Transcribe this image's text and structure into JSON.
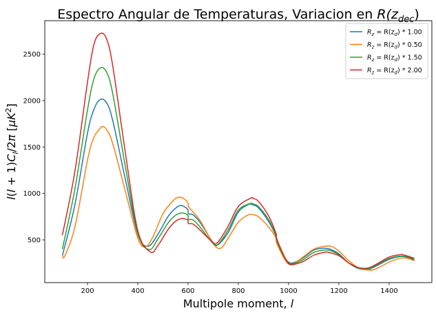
{
  "chart_data": {
    "type": "line",
    "title": "Espectro Angular de Temperaturas, Variacion en R(z_dec)",
    "title_parts": {
      "prefix": "Espectro Angular de Temperaturas, Variacion en ",
      "math": "R(z",
      "math_sub": "dec",
      "math_suffix": ")"
    },
    "xlabel": "Multipole moment, l",
    "xlabel_parts": {
      "prefix": "Multipole moment, ",
      "math": "l"
    },
    "ylabel": "l(l+1)C_l/2π [μK²]",
    "xlim": [
      30,
      1570
    ],
    "ylim": [
      40,
      2860
    ],
    "xticks": [
      200,
      400,
      600,
      800,
      1000,
      1200,
      1400
    ],
    "yticks": [
      500,
      1000,
      1500,
      2000,
      2500
    ],
    "grid": false,
    "legend_position": "top-right",
    "colors": {
      "blue": "#1f77b4",
      "orange": "#ff7f0e",
      "green": "#2ca02c",
      "red": "#d62728"
    },
    "series": [
      {
        "name": "R_z = R(z_d) * 1.00",
        "legend": {
          "lhs": "R",
          "lhs_sub": "z",
          "mid": " = R(z",
          "mid_sub": "d",
          "rhs": ") * 1.00"
        },
        "color": "#1f77b4",
        "x": [
          100,
          150,
          200,
          225,
          250,
          275,
          300,
          350,
          400,
          440,
          480,
          520,
          550,
          570,
          590,
          600,
          602,
          620,
          650,
          700,
          720,
          760,
          800,
          840,
          860,
          880,
          920,
          950,
          952,
          980,
          1000,
          1020,
          1060,
          1100,
          1140,
          1165,
          1200,
          1240,
          1280,
          1320,
          1360,
          1400,
          1440,
          1460,
          1480,
          1500
        ],
        "y": [
          330,
          880,
          1650,
          1900,
          2010,
          1980,
          1790,
          1160,
          560,
          430,
          560,
          750,
          840,
          870,
          850,
          820,
          780,
          770,
          680,
          470,
          450,
          580,
          800,
          880,
          875,
          845,
          700,
          540,
          490,
          330,
          260,
          255,
          310,
          390,
          410,
          400,
          350,
          250,
          190,
          185,
          235,
          290,
          320,
          320,
          305,
          285
        ]
      },
      {
        "name": "R_z = R(z_d) * 0.50",
        "legend": {
          "lhs": "R",
          "lhs_sub": "z",
          "mid": " = R(z",
          "mid_sub": "d",
          "rhs": ") * 0.50"
        },
        "color": "#ff7f0e",
        "x": [
          100,
          110,
          150,
          200,
          225,
          250,
          260,
          275,
          300,
          350,
          400,
          430,
          460,
          500,
          540,
          565,
          590,
          600,
          602,
          620,
          650,
          700,
          730,
          760,
          800,
          840,
          860,
          880,
          920,
          950,
          952,
          980,
          1000,
          1020,
          1060,
          1100,
          1140,
          1170,
          1200,
          1240,
          1280,
          1330,
          1360,
          1400,
          1440,
          1465,
          1480,
          1500
        ],
        "y": [
          330,
          330,
          640,
          1360,
          1600,
          1700,
          1720,
          1690,
          1540,
          1030,
          520,
          425,
          530,
          780,
          920,
          960,
          930,
          890,
          855,
          800,
          700,
          460,
          410,
          520,
          690,
          770,
          770,
          750,
          640,
          520,
          470,
          310,
          240,
          245,
          320,
          400,
          430,
          430,
          380,
          275,
          195,
          175,
          205,
          260,
          300,
          305,
          295,
          275
        ]
      },
      {
        "name": "R_z = R(z_d) * 1.50",
        "legend": {
          "lhs": "R",
          "lhs_sub": "z",
          "mid": " = R(z",
          "mid_sub": "d",
          "rhs": ") * 1.50"
        },
        "color": "#2ca02c",
        "x": [
          100,
          150,
          200,
          225,
          250,
          275,
          300,
          350,
          400,
          445,
          480,
          520,
          550,
          575,
          595,
          600,
          602,
          620,
          650,
          700,
          720,
          760,
          800,
          845,
          860,
          880,
          920,
          950,
          952,
          980,
          1000,
          1020,
          1060,
          1100,
          1140,
          1165,
          1200,
          1240,
          1280,
          1320,
          1360,
          1400,
          1440,
          1460,
          1480,
          1500
        ],
        "y": [
          400,
          1050,
          1900,
          2230,
          2350,
          2310,
          2080,
          1300,
          570,
          395,
          510,
          680,
          765,
          790,
          775,
          760,
          720,
          715,
          630,
          460,
          455,
          610,
          820,
          890,
          885,
          860,
          720,
          550,
          500,
          330,
          250,
          245,
          290,
          365,
          390,
          385,
          340,
          250,
          195,
          190,
          245,
          300,
          325,
          325,
          312,
          290
        ]
      },
      {
        "name": "R_z = R(z_d) * 2.00",
        "legend": {
          "lhs": "R",
          "lhs_sub": "z",
          "mid": " = R(z",
          "mid_sub": "d",
          "rhs": ") * 2.00"
        },
        "color": "#d62728",
        "x": [
          100,
          150,
          200,
          225,
          250,
          275,
          300,
          350,
          400,
          450,
          480,
          520,
          550,
          575,
          595,
          600,
          602,
          620,
          650,
          700,
          720,
          760,
          800,
          850,
          860,
          880,
          920,
          950,
          952,
          980,
          1000,
          1020,
          1060,
          1100,
          1140,
          1160,
          1200,
          1240,
          1280,
          1320,
          1360,
          1400,
          1440,
          1455,
          1480,
          1500
        ],
        "y": [
          550,
          1240,
          2200,
          2600,
          2720,
          2670,
          2380,
          1450,
          600,
          370,
          440,
          610,
          700,
          730,
          720,
          710,
          675,
          670,
          600,
          470,
          480,
          650,
          860,
          950,
          945,
          915,
          760,
          570,
          520,
          340,
          245,
          235,
          270,
          335,
          365,
          365,
          330,
          250,
          200,
          200,
          255,
          315,
          340,
          340,
          320,
          300
        ]
      }
    ]
  }
}
